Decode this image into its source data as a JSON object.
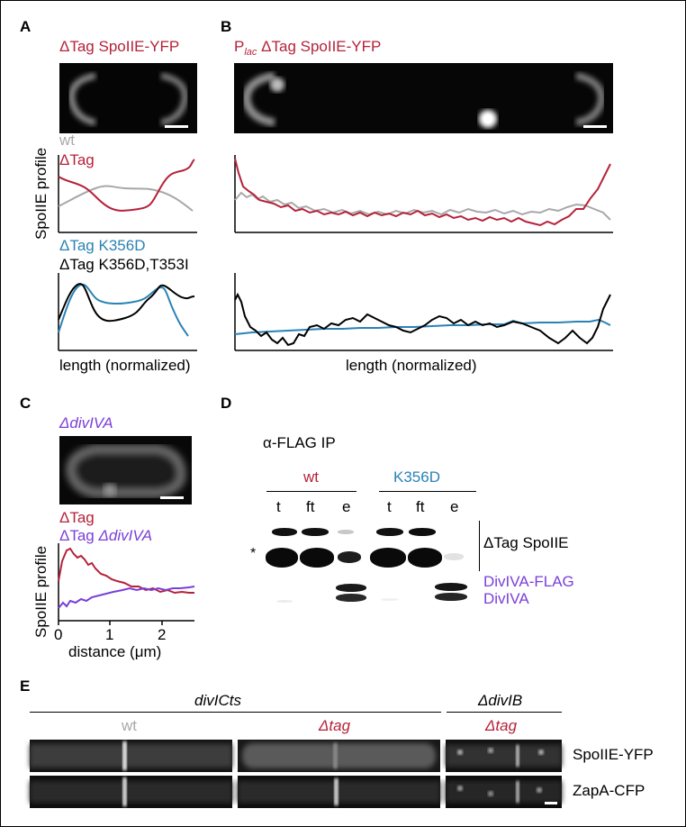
{
  "panels": {
    "A": {
      "letter": "A",
      "title": "ΔTag SpoIIE-YFP",
      "legend_top_1": "wt",
      "legend_top_2": "ΔTag",
      "legend_bot_1": "ΔTag K356D",
      "legend_bot_2": "ΔTag K356D,T353I",
      "ylabel": "SpoIIE profile",
      "xlabel": "length (normalized)"
    },
    "B": {
      "letter": "B",
      "title_p": "P",
      "title_sub": "lac",
      "title_rest": " ΔTag SpoIIE-YFP",
      "xlabel": "length (normalized)"
    },
    "C": {
      "letter": "C",
      "title": "ΔdivIVA",
      "legend_1": "ΔTag",
      "legend_2_a": "ΔTag ",
      "legend_2_b": "ΔdivIVA",
      "ylabel": "SpoIIE profile",
      "xlabel": "distance (μm)",
      "xticks": [
        "0",
        "1",
        "2"
      ]
    },
    "D": {
      "letter": "D",
      "ip_label": "α-FLAG IP",
      "group_wt": "wt",
      "group_k356d": "K356D",
      "lanes": [
        "t",
        "ft",
        "e",
        "t",
        "ft",
        "e"
      ],
      "asterisk": "*",
      "band_label_1": "ΔTag SpoIIE",
      "band_label_2": "DivIVA-FLAG",
      "band_label_3": "DivIVA"
    },
    "E": {
      "letter": "E",
      "group_1": "divICts",
      "group_2": "ΔdivIB",
      "col_1": "wt",
      "col_2": "Δtag",
      "col_3": "Δtag",
      "row_1": "SpoIIE-YFP",
      "row_2": "ZapA-CFP"
    }
  },
  "colors": {
    "red": "#b5223a",
    "blue": "#2a82b5",
    "gray": "#a8a8a8",
    "purple": "#7b3fd8",
    "black": "#000000"
  }
}
